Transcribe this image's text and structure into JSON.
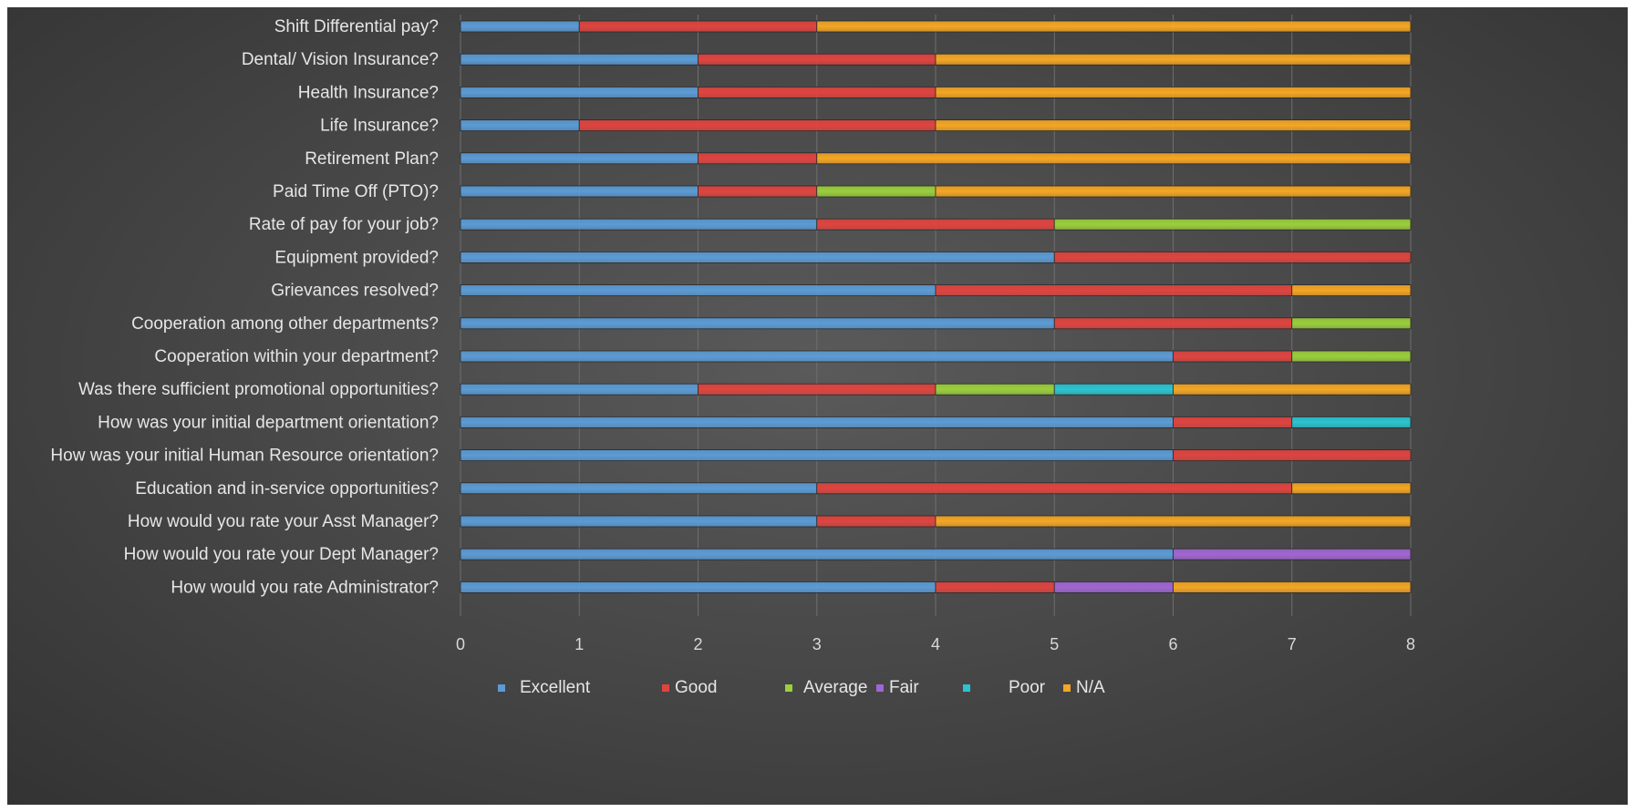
{
  "chart_data": {
    "type": "bar",
    "orientation": "horizontal",
    "stacked": true,
    "title": "",
    "xlabel": "",
    "ylabel": "",
    "xlim": [
      0,
      8
    ],
    "x_ticks": [
      "0",
      "1",
      "2",
      "3",
      "4",
      "5",
      "6",
      "7",
      "8"
    ],
    "grid": true,
    "legend_position": "bottom",
    "categories": [
      "Shift Differential pay?",
      "Dental/ Vision Insurance?",
      "Health Insurance?",
      "Life Insurance?",
      "Retirement Plan?",
      "Paid Time Off (PTO)?",
      "Rate of pay for your job?",
      "Equipment provided?",
      "Grievances resolved?",
      "Cooperation among other departments?",
      "Cooperation within your department?",
      "Was there sufficient promotional opportunities?",
      "How was your initial department orientation?",
      "How was your initial Human Resource orientation?",
      "Education and in-service opportunities?",
      "How would you rate your Asst Manager?",
      "How would you rate your Dept Manager?",
      "How would you rate Administrator?"
    ],
    "series": [
      {
        "name": "Excellent",
        "color": "#5b9bd5",
        "values": [
          1,
          2,
          2,
          1,
          2,
          2,
          3,
          5,
          4,
          5,
          6,
          2,
          6,
          6,
          3,
          3,
          6,
          4
        ]
      },
      {
        "name": "Good",
        "color": "#e0443f",
        "values": [
          2,
          2,
          2,
          3,
          1,
          1,
          2,
          3,
          3,
          2,
          1,
          2,
          1,
          2,
          4,
          1,
          0,
          1
        ]
      },
      {
        "name": "Average",
        "color": "#9bcf3c",
        "values": [
          0,
          0,
          0,
          0,
          0,
          1,
          3,
          0,
          0,
          1,
          1,
          1,
          0,
          0,
          0,
          0,
          0,
          0
        ]
      },
      {
        "name": "Fair",
        "color": "#a066d3",
        "values": [
          0,
          0,
          0,
          0,
          0,
          0,
          0,
          0,
          0,
          0,
          0,
          0,
          0,
          0,
          0,
          0,
          2,
          1
        ]
      },
      {
        "name": "Poor",
        "color": "#2bc4d0",
        "values": [
          0,
          0,
          0,
          0,
          0,
          0,
          0,
          0,
          0,
          0,
          0,
          1,
          1,
          0,
          0,
          0,
          0,
          0
        ]
      },
      {
        "name": "N/A",
        "color": "#f5a623",
        "values": [
          5,
          4,
          4,
          4,
          5,
          4,
          0,
          0,
          1,
          0,
          0,
          2,
          0,
          0,
          1,
          4,
          0,
          2
        ]
      }
    ]
  }
}
